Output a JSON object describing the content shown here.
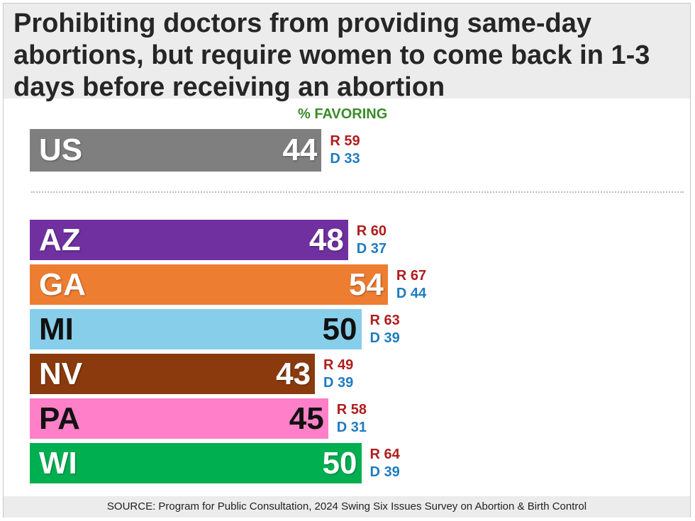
{
  "title": "Prohibiting doctors from providing same-day abortions, but require women to come back in 1-3 days before receiving an abortion",
  "subhead": "% FAVORING",
  "source": "SOURCE: Program for Public Consultation, 2024 Swing Six Issues Survey on Abortion & Birth Control",
  "chart_data": {
    "type": "bar",
    "orientation": "horizontal",
    "title": "Prohibiting doctors from providing same-day abortions, but require women to come back in 1-3 days before receiving an abortion",
    "subtitle": "% FAVORING",
    "xlim": [
      0,
      100
    ],
    "bars": [
      {
        "label": "US",
        "value": 44,
        "r": "R 59",
        "d": "D 33",
        "color": "#7f7f7f",
        "text_color": "white"
      },
      {
        "label": "AZ",
        "value": 48,
        "r": "R 60",
        "d": "D 37",
        "color": "#7030a0",
        "text_color": "white"
      },
      {
        "label": "GA",
        "value": 54,
        "r": "R 67",
        "d": "D 44",
        "color": "#ed7d31",
        "text_color": "white"
      },
      {
        "label": "MI",
        "value": 50,
        "r": "R 63",
        "d": "D 39",
        "color": "#87ceeb",
        "text_color": "dark"
      },
      {
        "label": "NV",
        "value": 43,
        "r": "R 49",
        "d": "D 39",
        "color": "#8b3a0e",
        "text_color": "white"
      },
      {
        "label": "PA",
        "value": 45,
        "r": "R 58",
        "d": "D 31",
        "color": "#ff80c8",
        "text_color": "dark"
      },
      {
        "label": "WI",
        "value": 50,
        "r": "R 64",
        "d": "D 39",
        "color": "#00b050",
        "text_color": "white"
      }
    ]
  }
}
